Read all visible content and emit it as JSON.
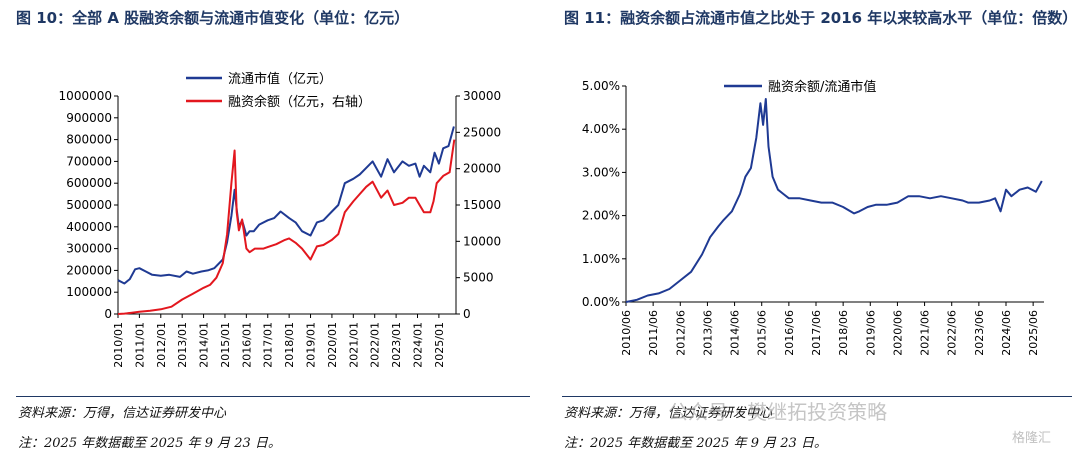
{
  "left": {
    "title": "图 10：全部 A 股融资余额与流通市值变化（单位：亿元）",
    "source": "资料来源：万得，信达证券研发中心",
    "note": "注：2025 年数据截至 2025 年 9 月 23 日。",
    "chart_data": {
      "type": "line",
      "categories": [
        "2010/01",
        "2011/01",
        "2012/01",
        "2013/01",
        "2014/01",
        "2015/01",
        "2016/01",
        "2017/01",
        "2018/01",
        "2019/01",
        "2020/01",
        "2021/01",
        "2022/01",
        "2023/01",
        "2024/01",
        "2025/01"
      ],
      "left_ticks": [
        "0",
        "100000",
        "200000",
        "300000",
        "400000",
        "500000",
        "600000",
        "700000",
        "800000",
        "900000",
        "1000000"
      ],
      "right_ticks": [
        "0",
        "5000",
        "10000",
        "15000",
        "20000",
        "25000",
        "30000"
      ],
      "ylim_left": [
        0,
        1000000
      ],
      "ylim_right": [
        0,
        30000
      ],
      "series": [
        {
          "name": "流通市值（亿元）",
          "axis": "left",
          "color": "#1f3a93",
          "x": [
            2010.0,
            2010.3,
            2010.55,
            2010.8,
            2011.0,
            2011.3,
            2011.6,
            2012.0,
            2012.4,
            2012.9,
            2013.2,
            2013.5,
            2013.9,
            2014.2,
            2014.5,
            2014.9,
            2015.1,
            2015.3,
            2015.45,
            2015.55,
            2015.65,
            2015.8,
            2016.0,
            2016.15,
            2016.35,
            2016.6,
            2017.0,
            2017.3,
            2017.6,
            2018.0,
            2018.3,
            2018.6,
            2019.0,
            2019.3,
            2019.6,
            2020.0,
            2020.3,
            2020.6,
            2021.0,
            2021.3,
            2021.6,
            2021.9,
            2022.3,
            2022.6,
            2022.9,
            2023.3,
            2023.6,
            2023.9,
            2024.1,
            2024.3,
            2024.6,
            2024.8,
            2025.0,
            2025.2,
            2025.45,
            2025.7
          ],
          "y": [
            155000,
            140000,
            160000,
            205000,
            210000,
            195000,
            180000,
            175000,
            180000,
            170000,
            195000,
            185000,
            195000,
            200000,
            210000,
            250000,
            330000,
            450000,
            570000,
            480000,
            400000,
            430000,
            360000,
            380000,
            380000,
            410000,
            430000,
            440000,
            470000,
            440000,
            420000,
            380000,
            360000,
            420000,
            430000,
            470000,
            500000,
            600000,
            620000,
            640000,
            670000,
            700000,
            630000,
            710000,
            650000,
            700000,
            680000,
            690000,
            630000,
            680000,
            650000,
            740000,
            690000,
            760000,
            770000,
            860000
          ]
        },
        {
          "name": "融资余额（亿元，右轴）",
          "axis": "right",
          "color": "#e3171e",
          "x": [
            2010.0,
            2010.3,
            2010.6,
            2011.0,
            2011.5,
            2012.0,
            2012.5,
            2013.0,
            2013.5,
            2014.0,
            2014.3,
            2014.6,
            2014.9,
            2015.1,
            2015.3,
            2015.45,
            2015.55,
            2015.65,
            2015.8,
            2016.0,
            2016.15,
            2016.4,
            2016.8,
            2017.0,
            2017.4,
            2017.8,
            2018.0,
            2018.3,
            2018.6,
            2019.0,
            2019.3,
            2019.6,
            2020.0,
            2020.3,
            2020.6,
            2021.0,
            2021.3,
            2021.6,
            2021.9,
            2022.3,
            2022.6,
            2022.9,
            2023.3,
            2023.6,
            2023.9,
            2024.1,
            2024.3,
            2024.6,
            2024.75,
            2024.9,
            2025.2,
            2025.5,
            2025.72
          ],
          "y": [
            0,
            50,
            150,
            300,
            450,
            650,
            1000,
            2000,
            2800,
            3600,
            4000,
            5000,
            7000,
            11000,
            18000,
            22500,
            14000,
            11500,
            13000,
            9000,
            8500,
            9000,
            9000,
            9200,
            9600,
            10200,
            10400,
            9800,
            9000,
            7500,
            9300,
            9500,
            10200,
            11000,
            14000,
            15500,
            16500,
            17500,
            18200,
            16000,
            17000,
            15000,
            15300,
            16000,
            16000,
            15000,
            14000,
            14000,
            15500,
            18000,
            19000,
            19500,
            24000
          ]
        }
      ]
    }
  },
  "right": {
    "title": "图 11：融资余额占流通市值之比处于 2016 年以来较高水平（单位：倍数）",
    "source": "资料来源：万得，信达证券研发中心",
    "note": "注：2025 年数据截至 2025 年 9 月 23 日。",
    "chart_data": {
      "type": "line",
      "categories": [
        "2010/06",
        "2011/06",
        "2012/06",
        "2013/06",
        "2014/06",
        "2015/06",
        "2016/06",
        "2017/06",
        "2018/06",
        "2019/06",
        "2020/06",
        "2021/06",
        "2022/06",
        "2023/06",
        "2024/06",
        "2025/06"
      ],
      "y_ticks": [
        "0.00%",
        "1.00%",
        "2.00%",
        "3.00%",
        "4.00%",
        "5.00%"
      ],
      "ylim": [
        0,
        5
      ],
      "series": [
        {
          "name": "融资余额/流通市值",
          "color": "#1f3a93",
          "x": [
            2010.4,
            2010.8,
            2011.2,
            2011.6,
            2012.0,
            2012.4,
            2012.8,
            2013.2,
            2013.5,
            2013.8,
            2014.0,
            2014.3,
            2014.6,
            2014.8,
            2015.0,
            2015.2,
            2015.35,
            2015.45,
            2015.55,
            2015.65,
            2015.8,
            2016.0,
            2016.2,
            2016.4,
            2016.8,
            2017.2,
            2017.6,
            2018.0,
            2018.4,
            2018.8,
            2019.0,
            2019.3,
            2019.6,
            2020.0,
            2020.4,
            2020.8,
            2021.2,
            2021.6,
            2022.0,
            2022.4,
            2022.8,
            2023.0,
            2023.4,
            2023.8,
            2024.0,
            2024.2,
            2024.4,
            2024.6,
            2024.9,
            2025.2,
            2025.5,
            2025.72
          ],
          "y": [
            0.0,
            0.05,
            0.15,
            0.2,
            0.3,
            0.5,
            0.7,
            1.1,
            1.5,
            1.75,
            1.9,
            2.1,
            2.5,
            2.9,
            3.1,
            3.8,
            4.6,
            4.1,
            4.7,
            3.6,
            2.9,
            2.6,
            2.5,
            2.4,
            2.4,
            2.35,
            2.3,
            2.3,
            2.2,
            2.05,
            2.1,
            2.2,
            2.25,
            2.25,
            2.3,
            2.45,
            2.45,
            2.4,
            2.45,
            2.4,
            2.35,
            2.3,
            2.3,
            2.35,
            2.4,
            2.1,
            2.6,
            2.45,
            2.6,
            2.65,
            2.55,
            2.8
          ]
        }
      ]
    }
  },
  "watermark": {
    "text": "公众号 · 樊继拓投资策略",
    "brand": "格隆汇"
  }
}
